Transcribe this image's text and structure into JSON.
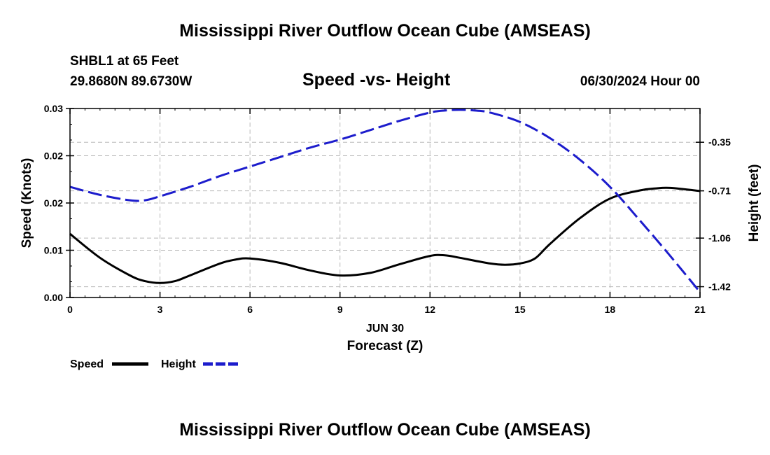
{
  "header": {
    "title": "Mississippi River Outflow Ocean Cube (AMSEAS)",
    "station": "SHBL1 at 65 Feet",
    "location": "29.8680N  89.6730W",
    "datetime": "06/30/2024 Hour 00"
  },
  "footer": {
    "title": "Mississippi River Outflow Ocean Cube (AMSEAS)"
  },
  "chart_data": {
    "type": "line",
    "title": "Speed -vs- Height",
    "xlabel": "Forecast (Z)",
    "date_label": "JUN 30",
    "ylabel": "Speed (Knots)",
    "y2label": "Height (feet)",
    "xlim": [
      0,
      21
    ],
    "ylim": [
      0,
      0.03
    ],
    "y2lim": [
      -1.5,
      -0.1
    ],
    "x_ticks": [
      "0",
      "3",
      "6",
      "9",
      "12",
      "15",
      "18",
      "21"
    ],
    "y_ticks": [
      "0.00",
      "0.01",
      "0.02",
      "0.02",
      "0.03"
    ],
    "y_tick_values": [
      0,
      0.0075,
      0.015,
      0.0225,
      0.03
    ],
    "y2_ticks": [
      "-0.35",
      "-0.71",
      "-1.06",
      "-1.42"
    ],
    "y2_tick_values": [
      -0.35,
      -0.71,
      -1.06,
      -1.42
    ],
    "grid": true,
    "legend": [
      "Speed",
      "Height"
    ],
    "series": [
      {
        "name": "Speed",
        "axis": "left",
        "color": "#000000",
        "style": "solid",
        "x": [
          0,
          1,
          2,
          2.5,
          3,
          3.5,
          4,
          5,
          5.5,
          6,
          7,
          8,
          9,
          10,
          11,
          12,
          12.5,
          13,
          14,
          14.5,
          15,
          15.5,
          16,
          17,
          18,
          19,
          19.5,
          20,
          21
        ],
        "values": [
          0.0101,
          0.0063,
          0.0035,
          0.0026,
          0.0023,
          0.0026,
          0.0035,
          0.0054,
          0.006,
          0.0062,
          0.0055,
          0.0043,
          0.0035,
          0.0039,
          0.0053,
          0.0066,
          0.0067,
          0.0063,
          0.0054,
          0.0052,
          0.0054,
          0.0062,
          0.0085,
          0.0126,
          0.0157,
          0.017,
          0.0173,
          0.0174,
          0.0169
        ]
      },
      {
        "name": "Height",
        "axis": "right",
        "color": "#1c1ccc",
        "style": "dashed",
        "x": [
          0,
          1,
          2,
          2.5,
          3,
          4,
          5,
          6,
          7,
          8,
          9,
          10,
          11,
          12,
          12.5,
          13,
          13.5,
          14,
          15,
          16,
          17,
          18,
          19,
          20,
          21
        ],
        "values": [
          -0.68,
          -0.74,
          -0.78,
          -0.78,
          -0.75,
          -0.68,
          -0.6,
          -0.53,
          -0.46,
          -0.39,
          -0.33,
          -0.26,
          -0.19,
          -0.13,
          -0.115,
          -0.11,
          -0.115,
          -0.13,
          -0.2,
          -0.32,
          -0.48,
          -0.68,
          -0.93,
          -1.19,
          -1.46
        ]
      }
    ]
  }
}
